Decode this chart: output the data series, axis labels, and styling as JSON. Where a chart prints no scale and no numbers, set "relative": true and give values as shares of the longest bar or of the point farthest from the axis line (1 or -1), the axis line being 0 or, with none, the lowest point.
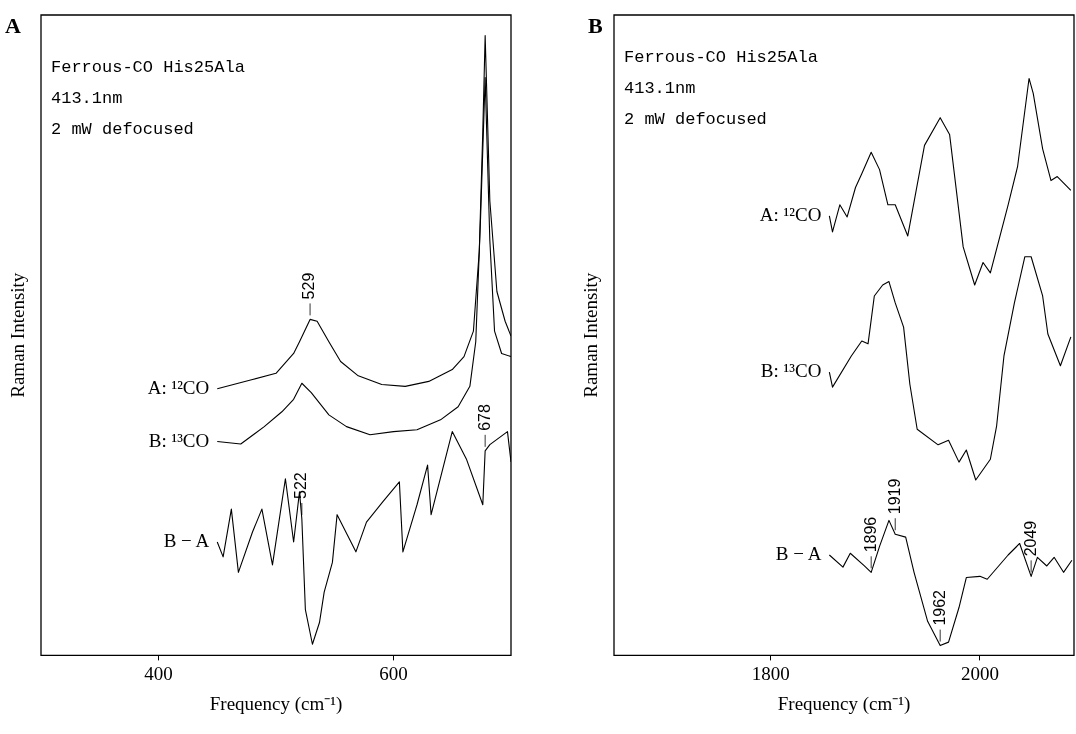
{
  "chart_data": [
    {
      "type": "line",
      "title": "A",
      "xlabel": "Frequency (cm⁻¹)",
      "ylabel": "Raman Intensity",
      "relative": true,
      "xlim": [
        300,
        700
      ],
      "xticks": [
        400,
        600
      ],
      "grid": false,
      "legend": false,
      "annotations": [
        "Ferrous-CO His25Ala",
        "413.1nm",
        "2 mW defocused",
        {
          "text": "529",
          "x": 529,
          "y": 0.542
        },
        {
          "text": "522",
          "x": 522,
          "y": 0.22
        },
        {
          "text": "678",
          "x": 678,
          "y": 0.33
        }
      ],
      "series": [
        {
          "name": "A: ¹²CO",
          "color": "#000000",
          "x": [
            450,
            480,
            500,
            515,
            520,
            529,
            535,
            545,
            555,
            570,
            590,
            610,
            630,
            650,
            660,
            668,
            673,
            676,
            678,
            682,
            688,
            695,
            700
          ],
          "values": [
            0.43,
            0.445,
            0.455,
            0.487,
            0.506,
            0.542,
            0.539,
            0.506,
            0.474,
            0.451,
            0.437,
            0.434,
            0.442,
            0.461,
            0.482,
            0.523,
            0.652,
            0.846,
            1.0,
            0.733,
            0.587,
            0.539,
            0.515
          ]
        },
        {
          "name": "B: ¹³CO",
          "color": "#000000",
          "x": [
            450,
            470,
            490,
            505,
            515,
            522,
            530,
            545,
            560,
            580,
            600,
            620,
            640,
            655,
            665,
            670,
            674,
            678,
            682,
            686,
            692,
            700
          ],
          "values": [
            0.345,
            0.341,
            0.369,
            0.393,
            0.413,
            0.439,
            0.424,
            0.388,
            0.369,
            0.356,
            0.361,
            0.364,
            0.38,
            0.401,
            0.434,
            0.506,
            0.7,
            0.932,
            0.669,
            0.523,
            0.487,
            0.482
          ]
        },
        {
          "name": "B − A",
          "color": "#000000",
          "x": [
            450,
            455,
            462,
            468,
            480,
            488,
            497,
            508,
            515,
            520,
            522,
            525,
            531,
            537,
            541,
            548,
            552,
            568,
            577,
            591,
            605,
            608,
            620,
            629,
            632,
            650,
            662,
            676,
            678,
            682,
            697,
            700
          ],
          "values": [
            0.183,
            0.159,
            0.236,
            0.134,
            0.199,
            0.236,
            0.146,
            0.285,
            0.183,
            0.264,
            0.22,
            0.074,
            0.018,
            0.053,
            0.102,
            0.15,
            0.227,
            0.167,
            0.215,
            0.248,
            0.28,
            0.167,
            0.243,
            0.307,
            0.227,
            0.361,
            0.317,
            0.243,
            0.33,
            0.34,
            0.361,
            0.312
          ]
        }
      ]
    },
    {
      "type": "line",
      "title": "B",
      "xlabel": "Frequency (cm⁻¹)",
      "ylabel": "Raman Intensity",
      "relative": true,
      "xlim": [
        1650,
        2090
      ],
      "xticks": [
        1800,
        2000
      ],
      "grid": false,
      "legend": false,
      "annotations": [
        "Ferrous-CO His25Ala",
        "413.1nm",
        "2 mW defocused",
        {
          "text": "1896",
          "x": 1896,
          "y": 0.144
        },
        {
          "text": "1919",
          "x": 1919,
          "y": 0.21
        },
        {
          "text": "1962",
          "x": 1962,
          "y": 0.017
        },
        {
          "text": "2049",
          "x": 2049,
          "y": 0.137
        }
      ],
      "series": [
        {
          "name": "A: ¹²CO",
          "color": "#000000",
          "x": [
            1856,
            1859,
            1866,
            1873,
            1881,
            1887,
            1896,
            1904,
            1912,
            1919,
            1931,
            1947,
            1962,
            1971,
            1984,
            1995,
            2003,
            2010,
            2027,
            2036,
            2047,
            2051,
            2060,
            2068,
            2074,
            2087
          ],
          "values": [
            0.762,
            0.734,
            0.781,
            0.76,
            0.811,
            0.835,
            0.872,
            0.842,
            0.781,
            0.781,
            0.727,
            0.884,
            0.932,
            0.903,
            0.708,
            0.642,
            0.681,
            0.663,
            0.781,
            0.847,
            1.0,
            0.974,
            0.878,
            0.823,
            0.83,
            0.806
          ]
        },
        {
          "name": "B: ¹³CO",
          "color": "#000000",
          "x": [
            1856,
            1859,
            1877,
            1887,
            1893,
            1899,
            1907,
            1913,
            1919,
            1927,
            1933,
            1940,
            1960,
            1970,
            1980,
            1987,
            1996,
            2010,
            2016,
            2023,
            2033,
            2043,
            2049,
            2060,
            2065,
            2077,
            2087
          ],
          "values": [
            0.491,
            0.465,
            0.519,
            0.545,
            0.54,
            0.623,
            0.642,
            0.648,
            0.611,
            0.569,
            0.47,
            0.392,
            0.365,
            0.373,
            0.335,
            0.356,
            0.304,
            0.34,
            0.398,
            0.519,
            0.611,
            0.691,
            0.691,
            0.623,
            0.557,
            0.502,
            0.552
          ]
        },
        {
          "name": "B − A",
          "color": "#000000",
          "x": [
            1856,
            1869,
            1876,
            1889,
            1896,
            1904,
            1913,
            1919,
            1929,
            1937,
            1950,
            1962,
            1970,
            1980,
            1987,
            2000,
            2007,
            2027,
            2038,
            2049,
            2055,
            2064,
            2071,
            2080,
            2088
          ],
          "values": [
            0.174,
            0.153,
            0.177,
            0.156,
            0.144,
            0.189,
            0.234,
            0.21,
            0.205,
            0.144,
            0.059,
            0.017,
            0.023,
            0.083,
            0.135,
            0.137,
            0.132,
            0.174,
            0.194,
            0.137,
            0.17,
            0.155,
            0.17,
            0.144,
            0.165
          ]
        }
      ]
    }
  ]
}
